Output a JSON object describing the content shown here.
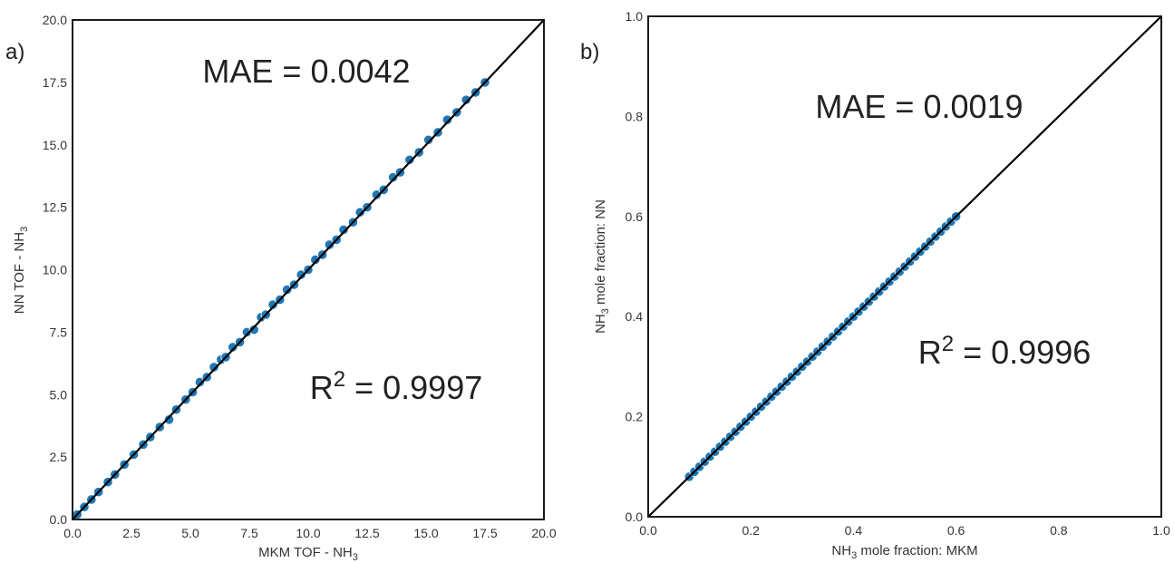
{
  "chart_data": [
    {
      "type": "scatter",
      "panel_label": "a)",
      "xlabel_main": "MKM TOF - NH",
      "xlabel_sub": "3",
      "ylabel_main": "NN TOF - NH",
      "ylabel_sub": "3",
      "xlim": [
        0,
        20
      ],
      "ylim": [
        0,
        20
      ],
      "x_ticks": [
        "0.0",
        "2.5",
        "5.0",
        "7.5",
        "10.0",
        "12.5",
        "15.0",
        "17.5",
        "20.0"
      ],
      "y_ticks": [
        "0.0",
        "2.5",
        "5.0",
        "7.5",
        "10.0",
        "12.5",
        "15.0",
        "17.5",
        "20.0"
      ],
      "annotations": {
        "mae": "MAE = 0.0042",
        "r2_prefix": "R",
        "r2_sup": "2",
        "r2_value": " = 0.9997"
      },
      "reference_line": "y = x",
      "marker_color": "#1f77b4",
      "points": {
        "x": [
          0.2,
          0.5,
          0.8,
          1.1,
          1.5,
          1.8,
          2.2,
          2.6,
          3.0,
          3.3,
          3.7,
          4.1,
          4.4,
          4.8,
          5.1,
          5.4,
          5.7,
          6.0,
          6.3,
          6.5,
          6.8,
          7.1,
          7.4,
          7.7,
          8.0,
          8.2,
          8.5,
          8.8,
          9.1,
          9.4,
          9.7,
          10.0,
          10.3,
          10.6,
          10.9,
          11.2,
          11.5,
          11.9,
          12.2,
          12.5,
          12.9,
          13.2,
          13.6,
          13.9,
          14.3,
          14.7,
          15.1,
          15.5,
          15.9,
          16.3,
          16.7,
          17.1,
          17.5
        ],
        "y": [
          0.2,
          0.5,
          0.8,
          1.1,
          1.5,
          1.8,
          2.2,
          2.6,
          3.0,
          3.3,
          3.7,
          4.0,
          4.4,
          4.8,
          5.1,
          5.5,
          5.7,
          6.1,
          6.4,
          6.5,
          6.9,
          7.1,
          7.5,
          7.6,
          8.1,
          8.2,
          8.6,
          8.8,
          9.2,
          9.4,
          9.8,
          10.0,
          10.4,
          10.6,
          11.0,
          11.2,
          11.6,
          11.9,
          12.3,
          12.5,
          13.0,
          13.2,
          13.7,
          13.9,
          14.4,
          14.7,
          15.2,
          15.5,
          16.0,
          16.3,
          16.8,
          17.1,
          17.5
        ]
      }
    },
    {
      "type": "scatter",
      "panel_label": "b)",
      "xlabel_pre": "NH",
      "xlabel_sub": "3",
      "xlabel_post": " mole fraction: MKM",
      "ylabel_pre": "NH",
      "ylabel_sub": "3",
      "ylabel_post": " mole fraction: NN",
      "xlim": [
        0,
        1
      ],
      "ylim": [
        0,
        1
      ],
      "x_ticks": [
        "0.0",
        "0.2",
        "0.4",
        "0.6",
        "0.8",
        "1.0"
      ],
      "y_ticks": [
        "0.0",
        "0.2",
        "0.4",
        "0.6",
        "0.8",
        "1.0"
      ],
      "annotations": {
        "mae": "MAE = 0.0019",
        "r2_prefix": "R",
        "r2_sup": "2",
        "r2_value": " = 0.9996"
      },
      "reference_line": "y = x",
      "marker_color": "#1f77b4",
      "points": {
        "x": [
          0.08,
          0.09,
          0.1,
          0.11,
          0.12,
          0.13,
          0.14,
          0.15,
          0.16,
          0.17,
          0.18,
          0.19,
          0.2,
          0.21,
          0.22,
          0.23,
          0.24,
          0.25,
          0.26,
          0.27,
          0.28,
          0.29,
          0.3,
          0.31,
          0.32,
          0.33,
          0.34,
          0.35,
          0.36,
          0.37,
          0.38,
          0.39,
          0.4,
          0.41,
          0.42,
          0.43,
          0.44,
          0.45,
          0.46,
          0.47,
          0.48,
          0.49,
          0.5,
          0.51,
          0.52,
          0.53,
          0.54,
          0.55,
          0.56,
          0.57,
          0.58,
          0.59,
          0.6
        ],
        "y": [
          0.08,
          0.09,
          0.1,
          0.11,
          0.12,
          0.13,
          0.14,
          0.15,
          0.16,
          0.17,
          0.18,
          0.19,
          0.2,
          0.21,
          0.22,
          0.23,
          0.24,
          0.25,
          0.26,
          0.27,
          0.28,
          0.29,
          0.3,
          0.31,
          0.32,
          0.33,
          0.34,
          0.35,
          0.36,
          0.37,
          0.38,
          0.39,
          0.4,
          0.41,
          0.42,
          0.43,
          0.44,
          0.45,
          0.46,
          0.47,
          0.48,
          0.49,
          0.5,
          0.51,
          0.52,
          0.53,
          0.54,
          0.55,
          0.56,
          0.57,
          0.58,
          0.59,
          0.6
        ]
      }
    }
  ]
}
